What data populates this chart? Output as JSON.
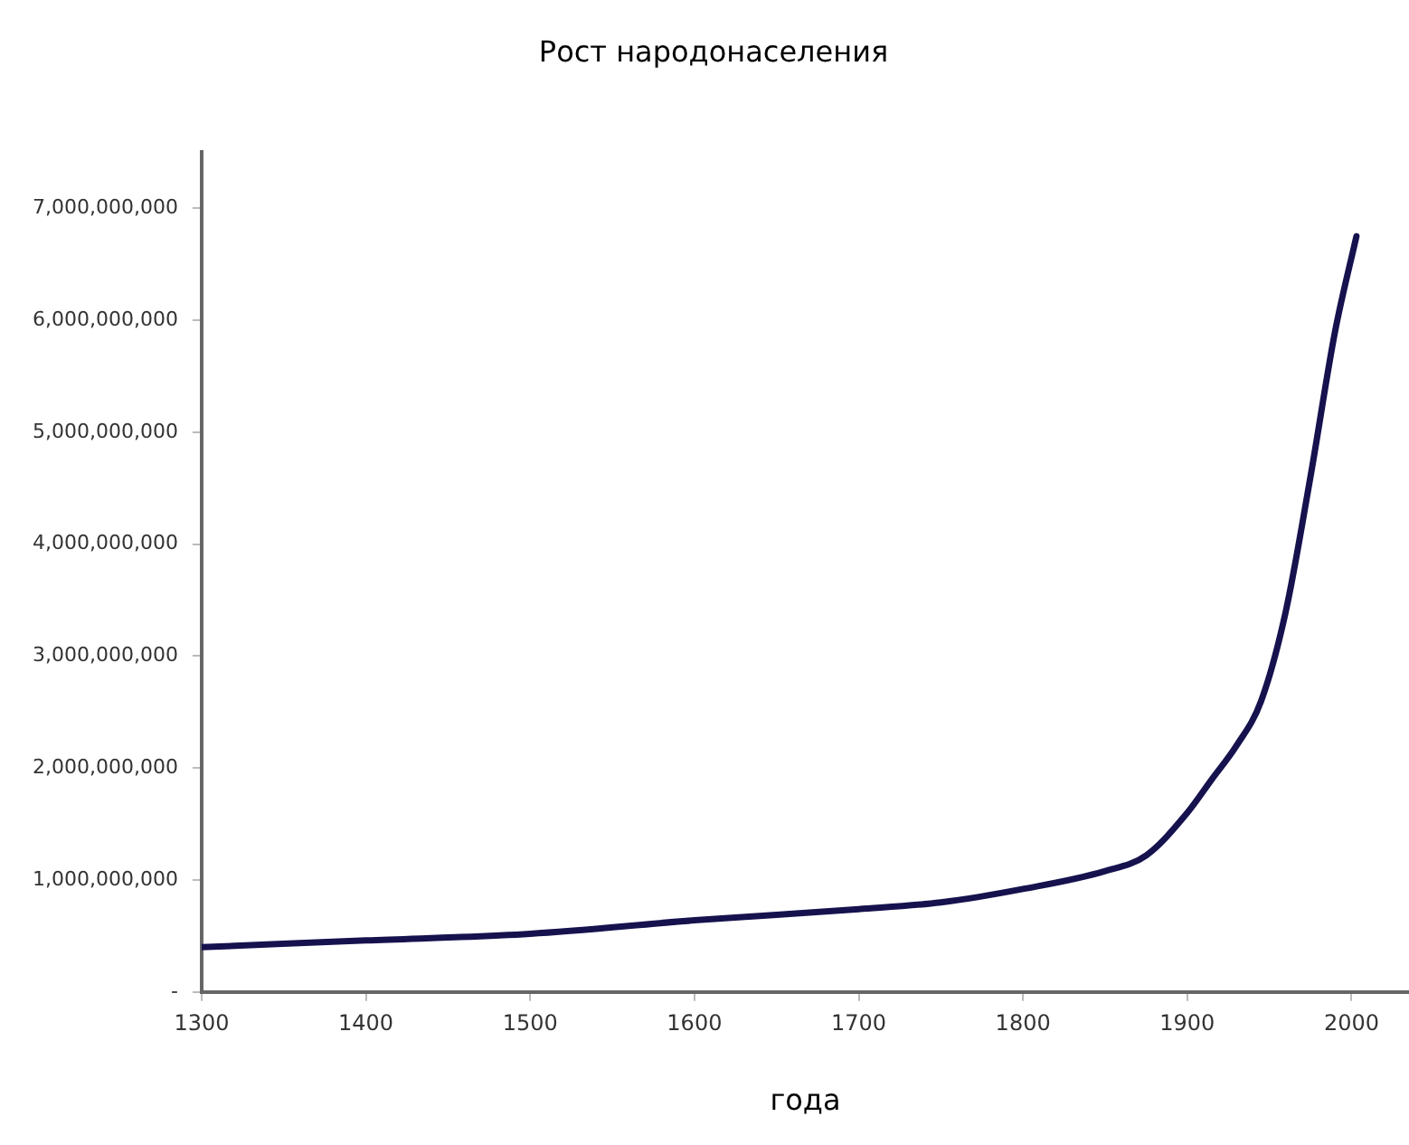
{
  "chart_data": {
    "type": "line",
    "title": "Рост народонаселения",
    "xlabel": "года",
    "x": [
      1300,
      1400,
      1500,
      1600,
      1700,
      1750,
      1800,
      1850,
      1875,
      1900,
      1915,
      1930,
      1945,
      1960,
      1975,
      1990,
      2003
    ],
    "series": [
      {
        "color": "#16124e",
        "values": [
          400000000,
          460000000,
          520000000,
          640000000,
          740000000,
          800000000,
          920000000,
          1080000000,
          1220000000,
          1600000000,
          1900000000,
          2200000000,
          2600000000,
          3400000000,
          4600000000,
          5900000000,
          6750000000
        ]
      }
    ],
    "xlim": [
      1300,
      2035
    ],
    "xticks": [
      1300,
      1400,
      1500,
      1600,
      1700,
      1800,
      1900,
      2000
    ],
    "ylim": [
      0,
      7500000000
    ],
    "yticks": [
      {
        "value": 0,
        "label": "-"
      },
      {
        "value": 1000000000,
        "label": "1,000,000,000"
      },
      {
        "value": 2000000000,
        "label": "2,000,000,000"
      },
      {
        "value": 3000000000,
        "label": "3,000,000,000"
      },
      {
        "value": 4000000000,
        "label": "4,000,000,000"
      },
      {
        "value": 5000000000,
        "label": "5,000,000,000"
      },
      {
        "value": 6000000000,
        "label": "6,000,000,000"
      },
      {
        "value": 7000000000,
        "label": "7,000,000,000"
      }
    ],
    "grid": false,
    "legend": false,
    "marker": "none",
    "line_style": "solid"
  }
}
